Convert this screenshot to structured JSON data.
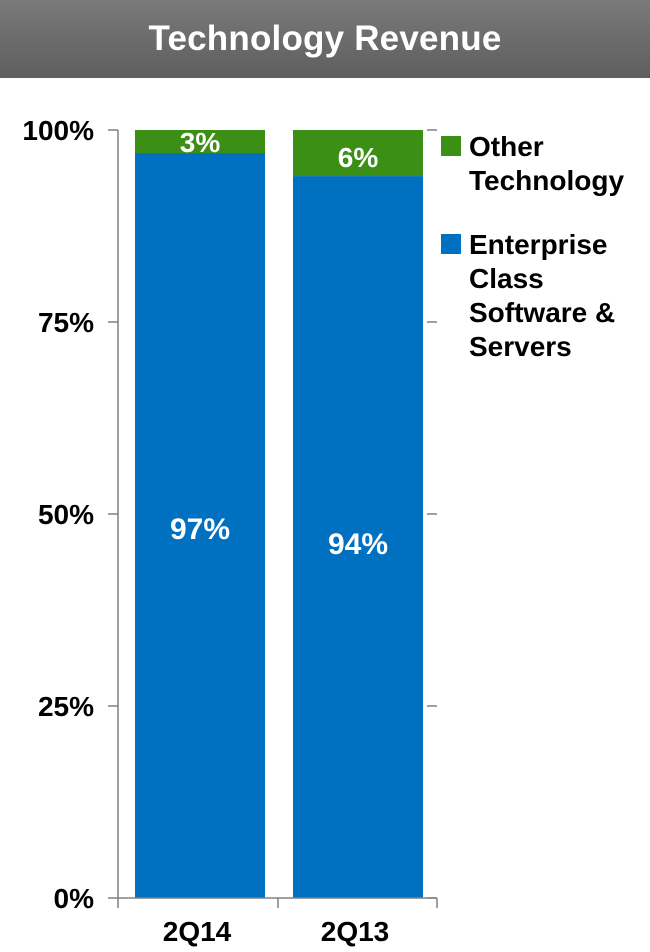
{
  "header": {
    "title": "Technology Revenue"
  },
  "colors": {
    "title_bg": "#6a6a6a",
    "enterprise": "#0070c0",
    "other": "#3b8f14",
    "axis": "#808080"
  },
  "chart_data": {
    "type": "bar",
    "stacked": true,
    "percent": true,
    "title": "Technology Revenue",
    "categories": [
      "2Q14",
      "2Q13"
    ],
    "series": [
      {
        "name": "Enterprise Class Software & Servers",
        "legend_label": [
          "Enterprise",
          "Class",
          "Software &",
          "Servers"
        ],
        "values": [
          97,
          94
        ],
        "labels": [
          "97%",
          "94%"
        ],
        "color": "#0070c0"
      },
      {
        "name": "Other Technology",
        "legend_label": [
          "Other",
          "Technology"
        ],
        "values": [
          3,
          6
        ],
        "labels": [
          "3%",
          "6%"
        ],
        "color": "#3b8f14"
      }
    ],
    "yticks": [
      "0%",
      "25%",
      "50%",
      "75%",
      "100%"
    ],
    "ylim": [
      0,
      100
    ],
    "xlabel": "",
    "ylabel": "",
    "grid": false,
    "legend_position": "right"
  }
}
